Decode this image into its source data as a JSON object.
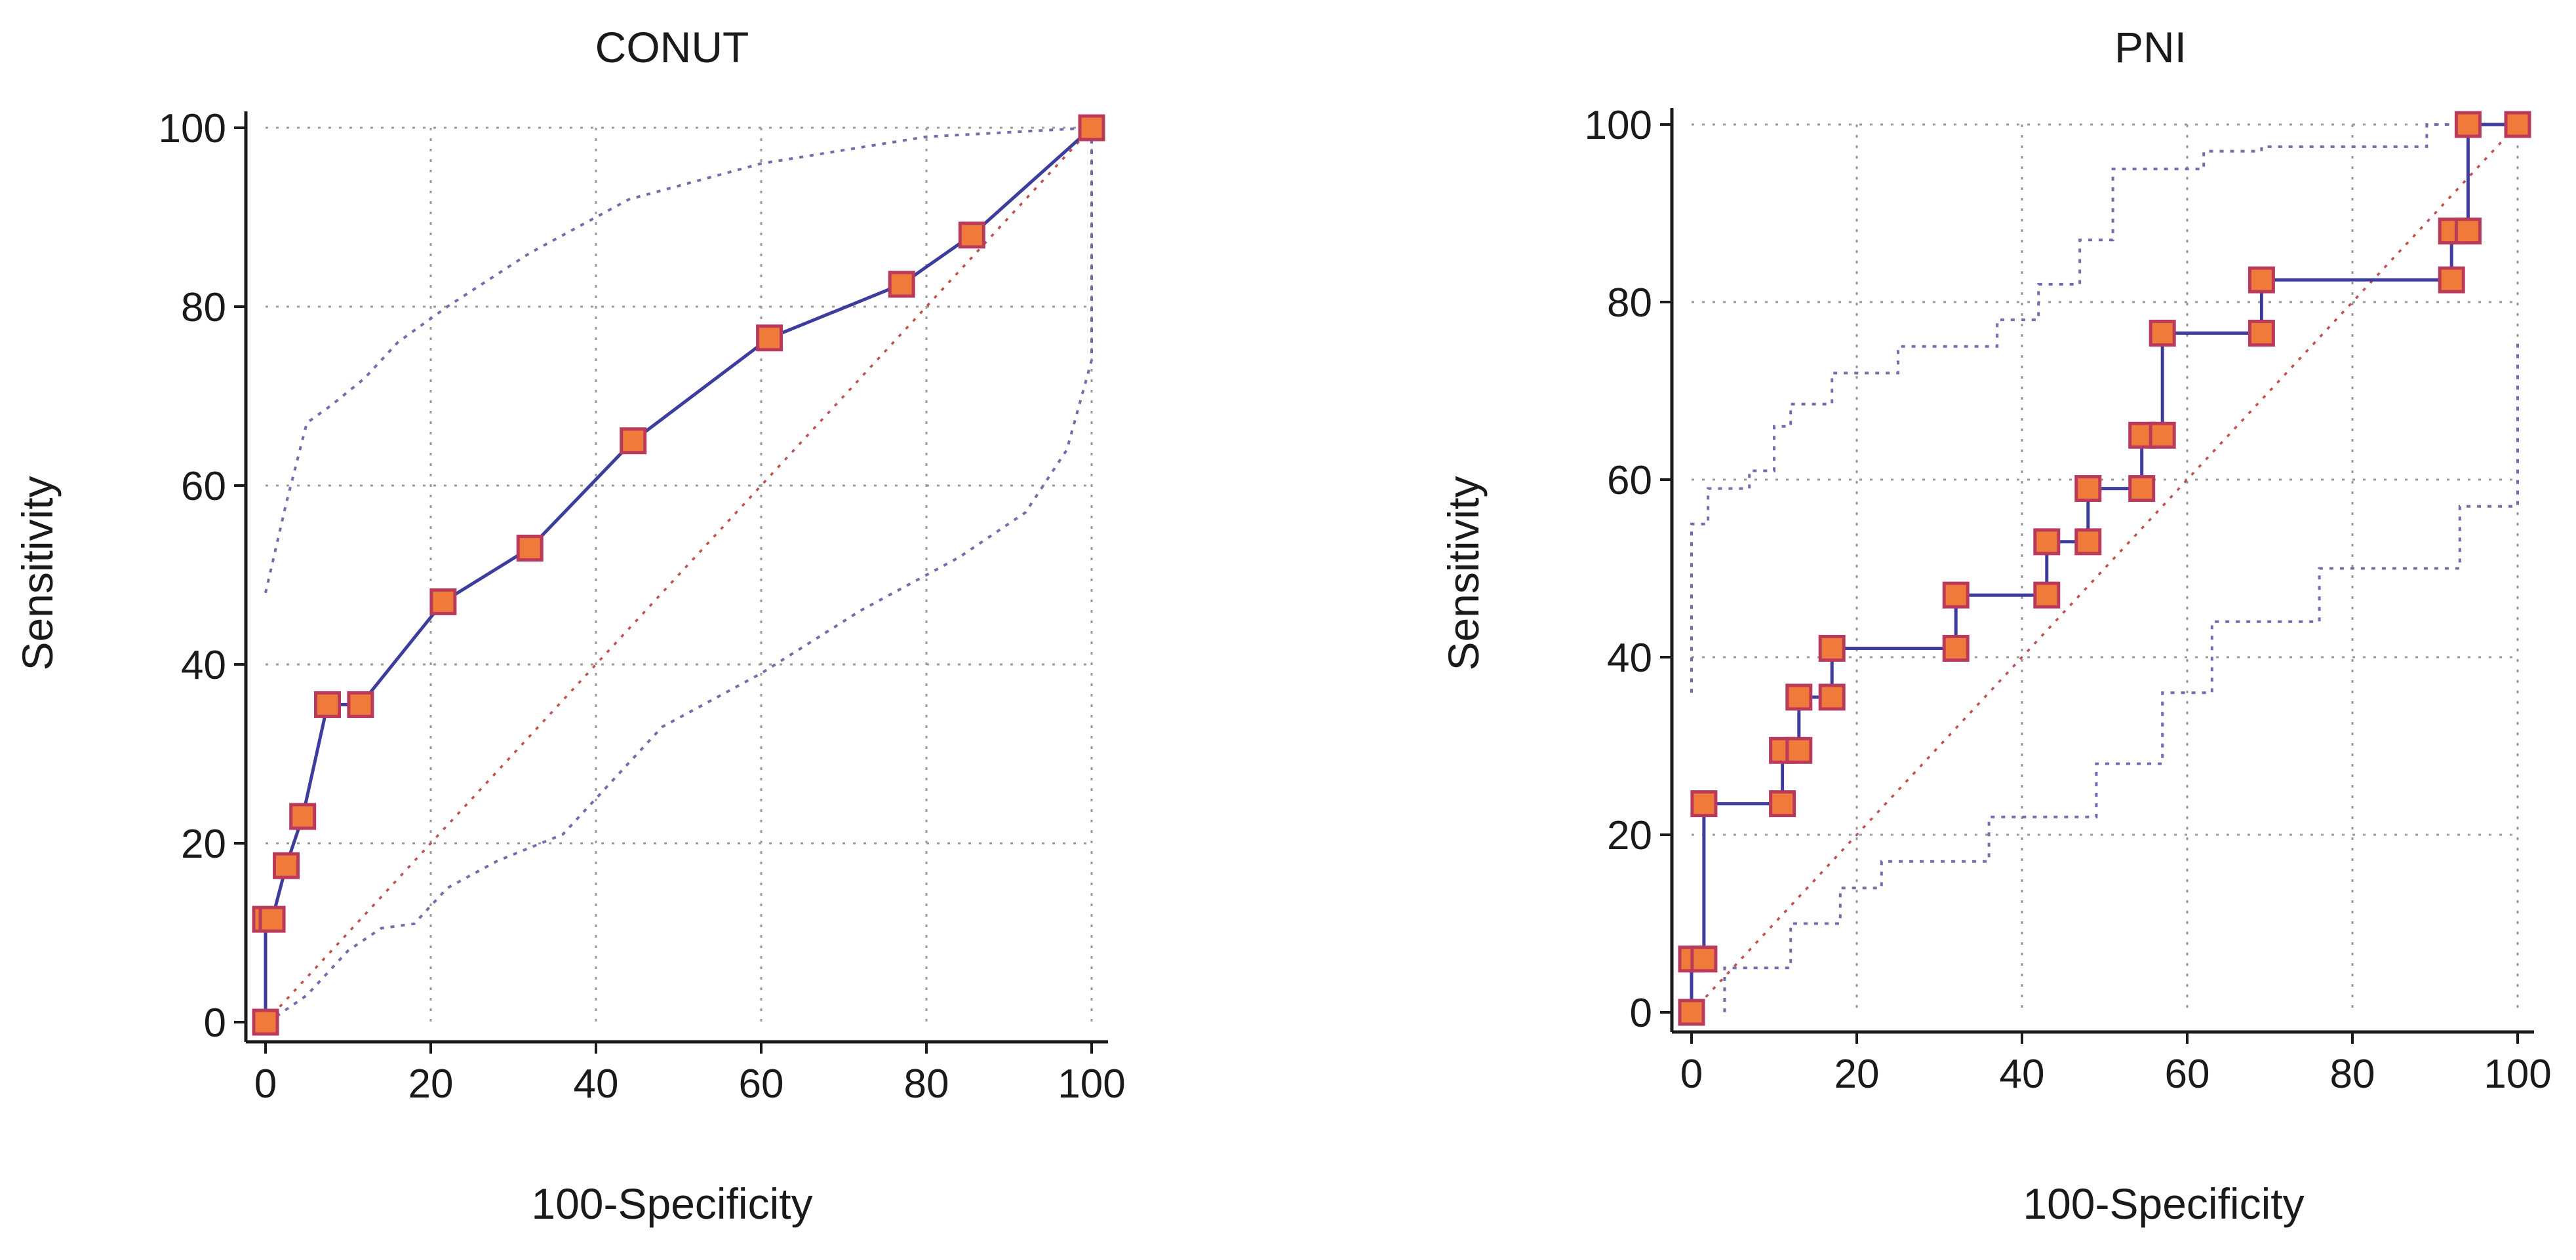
{
  "chart_data": [
    {
      "type": "line",
      "title": "CONUT",
      "xlabel": "100-Specificity",
      "ylabel": "Sensitivity",
      "xlim": [
        0,
        100
      ],
      "ylim": [
        0,
        100
      ],
      "xticks": [
        "0",
        "20",
        "40",
        "60",
        "80",
        "100"
      ],
      "yticks": [
        "0",
        "20",
        "40",
        "60",
        "80",
        "100"
      ],
      "grid": true,
      "colors": {
        "roc": "#3d3d9e",
        "marker": "#f07a3a",
        "marker_edge": "#b93a5a",
        "diagonal": "#c0504d",
        "ci": "#6f6fae"
      },
      "roc": {
        "x": [
          0,
          0,
          0.8,
          2.5,
          4.5,
          7.5,
          11.5,
          21.5,
          32,
          44.5,
          61,
          77,
          85.5,
          100
        ],
        "y": [
          0,
          11.5,
          11.5,
          17.5,
          23,
          35.5,
          35.5,
          47,
          53,
          65,
          76.5,
          82.5,
          88,
          100
        ],
        "markers": true
      },
      "ci_upper": {
        "x": [
          0,
          2.5,
          5,
          8,
          12,
          16,
          22,
          32,
          44,
          60,
          80,
          100
        ],
        "y": [
          48,
          58,
          67,
          69,
          72,
          76,
          80,
          86,
          92,
          96,
          99,
          100
        ]
      },
      "ci_lower": {
        "x": [
          0.3,
          5,
          10,
          14,
          18,
          22,
          28,
          36,
          48,
          60,
          72,
          84,
          92,
          97,
          100,
          100
        ],
        "y": [
          0,
          3,
          8,
          10.5,
          11,
          15,
          18,
          21,
          33,
          39,
          46,
          52,
          57,
          64,
          74,
          100
        ]
      }
    },
    {
      "type": "line",
      "title": "PNI",
      "xlabel": "100-Specificity",
      "ylabel": "Sensitivity",
      "xlim": [
        0,
        100
      ],
      "ylim": [
        0,
        100
      ],
      "xticks": [
        "0",
        "20",
        "40",
        "60",
        "80",
        "100"
      ],
      "yticks": [
        "0",
        "20",
        "40",
        "60",
        "80",
        "100"
      ],
      "grid": true,
      "colors": {
        "roc": "#3d3d9e",
        "marker": "#f07a3a",
        "marker_edge": "#b93a5a",
        "diagonal": "#c0504d",
        "ci": "#6f6fae"
      },
      "roc": {
        "x": [
          0,
          0,
          1.5,
          1.5,
          11,
          11,
          13,
          13,
          17,
          17,
          32,
          32,
          43,
          43,
          48,
          48,
          54.5,
          54.5,
          57,
          57,
          69,
          69,
          92,
          92,
          94,
          94,
          100
        ],
        "y": [
          0,
          6,
          6,
          23.5,
          23.5,
          29.5,
          29.5,
          35.5,
          35.5,
          41,
          41,
          47,
          47,
          53,
          53,
          59,
          59,
          65,
          65,
          76.5,
          76.5,
          82.5,
          82.5,
          88,
          88,
          100,
          100
        ],
        "markers": true
      },
      "ci_upper": {
        "x": [
          0,
          0,
          2,
          2,
          7,
          7,
          10,
          10,
          12,
          12,
          17,
          17,
          25,
          25,
          37,
          37,
          42,
          42,
          47,
          47,
          51,
          51,
          62,
          62,
          69,
          69,
          89,
          89,
          100
        ],
        "y": [
          36,
          55,
          55,
          59,
          59,
          61,
          61,
          66,
          66,
          68.5,
          68.5,
          72,
          72,
          75,
          75,
          78,
          78,
          82,
          82,
          87,
          87,
          95,
          95,
          97,
          97,
          97.5,
          97.5,
          100,
          100
        ]
      },
      "ci_lower": {
        "x": [
          4,
          4,
          12,
          12,
          18,
          18,
          23,
          23,
          36,
          36,
          49,
          49,
          57,
          57,
          63,
          63,
          76,
          76,
          93,
          93,
          100,
          100
        ],
        "y": [
          0,
          5,
          5,
          10,
          10,
          14,
          14,
          17,
          17,
          22,
          22,
          28,
          28,
          36,
          36,
          44,
          44,
          50,
          50,
          57,
          57,
          76
        ]
      }
    }
  ]
}
